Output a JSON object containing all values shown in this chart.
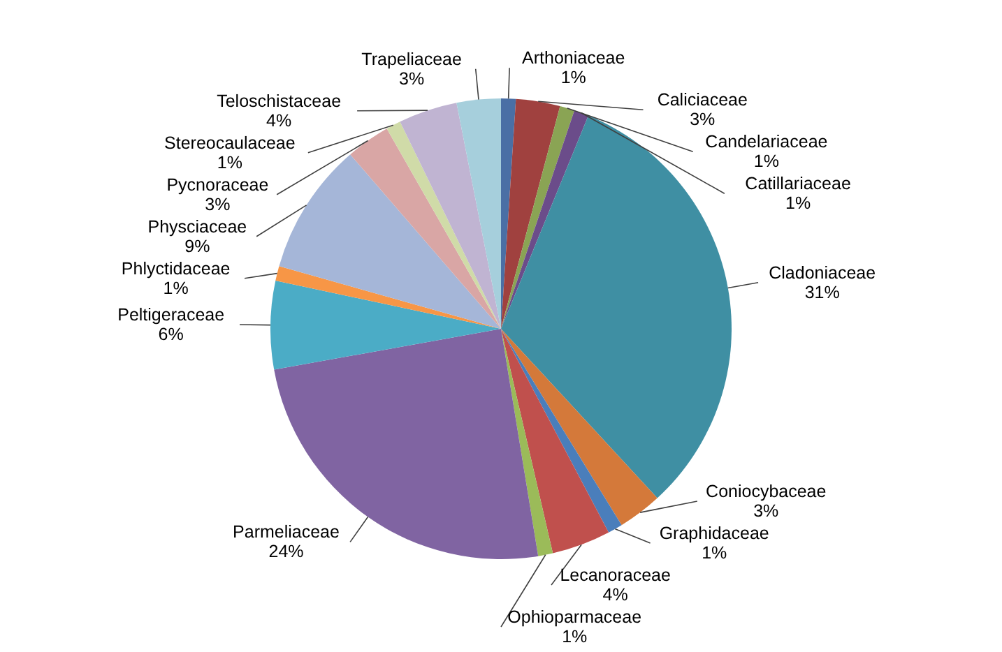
{
  "chart_data": {
    "type": "pie",
    "categories": [
      "Arthoniaceae",
      "Caliciaceae",
      "Candelariaceae",
      "Catillariaceae",
      "Cladoniaceae",
      "Coniocybaceae",
      "Graphidaceae",
      "Lecanoraceae",
      "Ophioparmaceae",
      "Parmeliaceae",
      "Peltigeraceae",
      "Phlyctidaceae",
      "Physciaceae",
      "Pycnoraceae",
      "Stereocaulaceae",
      "Teloschistaceae",
      "Trapeliaceae"
    ],
    "values": [
      1,
      3,
      1,
      1,
      31,
      3,
      1,
      4,
      1,
      24,
      6,
      1,
      9,
      3,
      1,
      4,
      3
    ],
    "value_labels": [
      "1%",
      "3%",
      "1%",
      "1%",
      "31%",
      "3%",
      "1%",
      "4%",
      "1%",
      "24%",
      "6%",
      "1%",
      "9%",
      "3%",
      "1%",
      "4%",
      "3%"
    ],
    "colors": [
      "#4a6fa5",
      "#a0413f",
      "#8aa454",
      "#6b4c8a",
      "#3f8fa3",
      "#d4793a",
      "#4a7ebb",
      "#c0504d",
      "#9bbb59",
      "#8064a2",
      "#4bacc6",
      "#f79646",
      "#a5b6d8",
      "#d9a6a5",
      "#d0dba8",
      "#c0b4d2",
      "#a6cfdc"
    ]
  }
}
